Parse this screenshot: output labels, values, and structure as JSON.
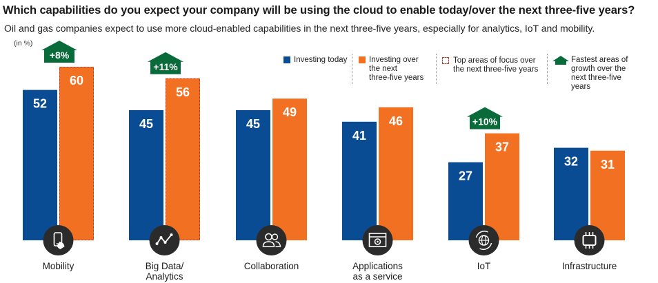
{
  "chart_data": {
    "type": "bar",
    "title": "Which capabilities do you expect your company will be using the cloud to enable today/over the next three-five years?",
    "subtitle": "Oil and gas companies expect to use more cloud-enabled capabilities in the next three-five years, especially for analytics, IoT and mobility.",
    "unit": "(in %)",
    "categories": [
      "Mobility",
      "Big Data/\nAnalytics",
      "Collaboration",
      "Applications\nas a service",
      "IoT",
      "Infrastructure"
    ],
    "series": [
      {
        "name": "Investing today",
        "color": "#0a4c94",
        "values": [
          52,
          45,
          45,
          41,
          27,
          32
        ]
      },
      {
        "name": "Investing over the next three-five years",
        "color": "#f27022",
        "values": [
          60,
          56,
          49,
          46,
          37,
          31
        ]
      }
    ],
    "top_focus": [
      true,
      true,
      false,
      false,
      false,
      false
    ],
    "growth_badges": [
      {
        "category_index": 0,
        "label": "+8%"
      },
      {
        "category_index": 1,
        "label": "+11%"
      },
      {
        "category_index": 4,
        "label": "+10%"
      }
    ],
    "badge_color": "#0a6b3a",
    "ylim": [
      0,
      60
    ],
    "grid": false,
    "legend_position": "top-right"
  },
  "legend": {
    "today": "Investing today",
    "future": "Investing over\nthe next\nthree-five years",
    "focus": "Top areas of focus over\nthe next three-five years",
    "growth": "Fastest areas of\ngrowth over the\nnext three-five\nyears"
  },
  "icons": [
    "mobile-hand-icon",
    "analytics-line-icon",
    "people-icon",
    "app-window-icon",
    "globe-sync-icon",
    "chip-icon"
  ]
}
